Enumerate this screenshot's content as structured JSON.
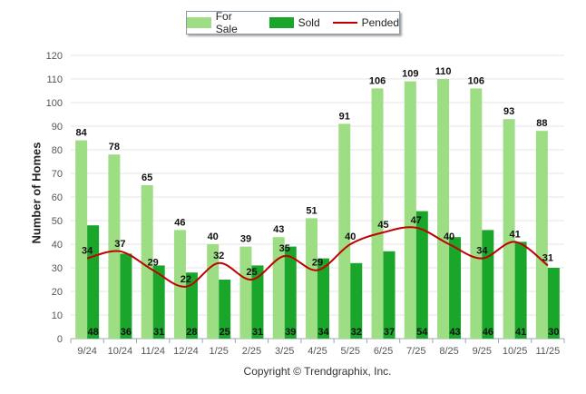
{
  "chart_data": {
    "type": "bar",
    "title": "",
    "xlabel": "",
    "ylabel": "Number of Homes",
    "ylim": [
      0,
      120
    ],
    "yticks": [
      0,
      10,
      20,
      30,
      40,
      50,
      60,
      70,
      80,
      90,
      100,
      110,
      120
    ],
    "categories": [
      "9/24",
      "10/24",
      "11/24",
      "12/24",
      "1/25",
      "2/25",
      "3/25",
      "4/25",
      "5/25",
      "6/25",
      "7/25",
      "8/25",
      "9/25",
      "10/25",
      "11/25"
    ],
    "series": [
      {
        "name": "For Sale",
        "kind": "bar",
        "color": "#9ddd84",
        "values": [
          84,
          78,
          65,
          46,
          40,
          39,
          43,
          51,
          91,
          106,
          109,
          110,
          106,
          93,
          88
        ]
      },
      {
        "name": "Sold",
        "kind": "bar",
        "color": "#1aa62a",
        "values": [
          48,
          36,
          31,
          28,
          25,
          31,
          39,
          34,
          32,
          37,
          54,
          43,
          46,
          41,
          30
        ]
      },
      {
        "name": "Pended",
        "kind": "line",
        "color": "#c00000",
        "values": [
          34,
          37,
          29,
          22,
          32,
          25,
          35,
          29,
          40,
          45,
          47,
          40,
          34,
          41,
          31
        ]
      }
    ],
    "legend": "top-center",
    "grid": true
  },
  "copyright": "Copyright © Trendgraphix, Inc."
}
